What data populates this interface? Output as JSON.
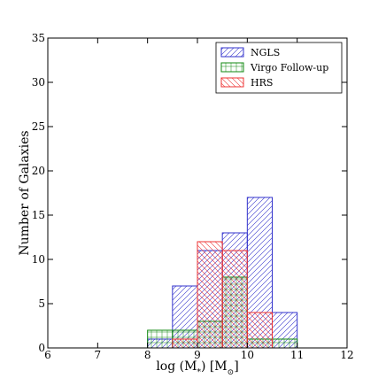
{
  "chart_data": {
    "type": "bar",
    "subtype": "step-histogram",
    "xlabel": "log (M",
    "xlabel_sub": "*",
    "xlabel_tail": ") [M",
    "xlabel_sub2": "⊙",
    "xlabel_end": "]",
    "ylabel": "Number of Galaxies",
    "xlim": [
      6,
      12
    ],
    "ylim": [
      0,
      35
    ],
    "xticks": [
      6,
      7,
      8,
      9,
      10,
      11,
      12
    ],
    "yticks": [
      0,
      5,
      10,
      15,
      20,
      25,
      30,
      35
    ],
    "grid": false,
    "legend_position": "top-right",
    "bin_edges": [
      8.0,
      8.5,
      9.0,
      9.5,
      10.0,
      10.5,
      11.0
    ],
    "series": [
      {
        "name": "NGLS",
        "color": "#3333cc",
        "hatch": "diagonal-up",
        "values": [
          1,
          7,
          11,
          13,
          17,
          4
        ]
      },
      {
        "name": "Virgo Follow-up",
        "color": "#118811",
        "hatch": "grid",
        "values": [
          2,
          2,
          3,
          8,
          1,
          1
        ]
      },
      {
        "name": "HRS",
        "color": "#ee3333",
        "hatch": "diagonal-down",
        "values": [
          0,
          1,
          12,
          11,
          4,
          0
        ]
      }
    ]
  }
}
